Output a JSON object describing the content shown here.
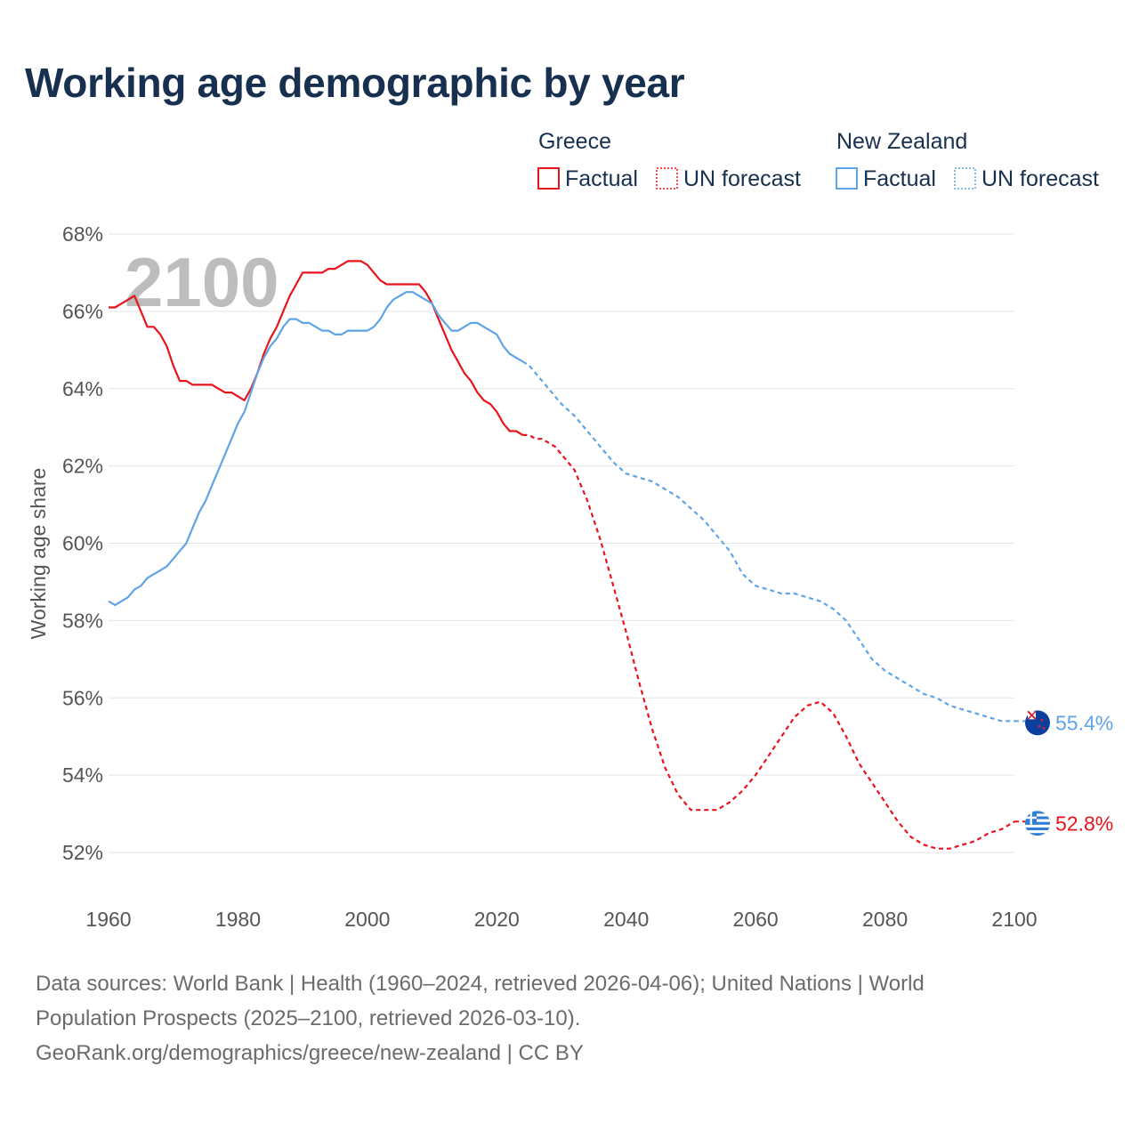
{
  "title": "Working age demographic by year",
  "legend": {
    "groups": [
      {
        "country": "Greece",
        "factual_label": "Factual",
        "forecast_label": "UN forecast",
        "color": "#e8141c"
      },
      {
        "country": "New Zealand",
        "factual_label": "Factual",
        "forecast_label": "UN forecast",
        "color": "#5fa4e6"
      }
    ]
  },
  "watermark_year": "2100",
  "colors": {
    "greece": "#e8141c",
    "new_zealand": "#5fa4e6",
    "grid": "#e5e5e5",
    "title": "#17304f"
  },
  "source": {
    "line1": "Data sources: World Bank | Health (1960–2024, retrieved 2026-04-06); United Nations | World",
    "line2": "Population Prospects (2025–2100, retrieved 2026-03-10).",
    "line3": "GeoRank.org/demographics/greece/new-zealand | CC BY"
  },
  "chart_data": {
    "type": "line",
    "title": "Working age demographic by year",
    "xlabel": "",
    "ylabel": "Working age share",
    "xlim": [
      1960,
      2100
    ],
    "ylim": [
      51,
      68
    ],
    "x_ticks": [
      1960,
      1980,
      2000,
      2020,
      2040,
      2060,
      2080,
      2100
    ],
    "x_tick_labels": [
      "1960",
      "1980",
      "2000",
      "2020",
      "2040",
      "2060",
      "2080",
      "2100"
    ],
    "y_ticks": [
      52,
      54,
      56,
      58,
      60,
      62,
      64,
      66,
      68
    ],
    "y_tick_labels": [
      "52%",
      "54%",
      "56%",
      "58%",
      "60%",
      "62%",
      "64%",
      "66%",
      "68%"
    ],
    "grid": true,
    "legend_position": "top-right",
    "forecast_start_year": 2024,
    "series": [
      {
        "name": "Greece",
        "end_label": "52.8%",
        "points": [
          [
            1960,
            66.1
          ],
          [
            1961,
            66.1
          ],
          [
            1962,
            66.2
          ],
          [
            1963,
            66.3
          ],
          [
            1964,
            66.4
          ],
          [
            1965,
            66.0
          ],
          [
            1966,
            65.6
          ],
          [
            1967,
            65.6
          ],
          [
            1968,
            65.4
          ],
          [
            1969,
            65.1
          ],
          [
            1970,
            64.6
          ],
          [
            1971,
            64.2
          ],
          [
            1972,
            64.2
          ],
          [
            1973,
            64.1
          ],
          [
            1974,
            64.1
          ],
          [
            1975,
            64.1
          ],
          [
            1976,
            64.1
          ],
          [
            1977,
            64.0
          ],
          [
            1978,
            63.9
          ],
          [
            1979,
            63.9
          ],
          [
            1980,
            63.8
          ],
          [
            1981,
            63.7
          ],
          [
            1982,
            64.0
          ],
          [
            1983,
            64.4
          ],
          [
            1984,
            64.9
          ],
          [
            1985,
            65.3
          ],
          [
            1986,
            65.6
          ],
          [
            1987,
            66.0
          ],
          [
            1988,
            66.4
          ],
          [
            1989,
            66.7
          ],
          [
            1990,
            67.0
          ],
          [
            1991,
            67.0
          ],
          [
            1992,
            67.0
          ],
          [
            1993,
            67.0
          ],
          [
            1994,
            67.1
          ],
          [
            1995,
            67.1
          ],
          [
            1996,
            67.2
          ],
          [
            1997,
            67.3
          ],
          [
            1998,
            67.3
          ],
          [
            1999,
            67.3
          ],
          [
            2000,
            67.2
          ],
          [
            2001,
            67.0
          ],
          [
            2002,
            66.8
          ],
          [
            2003,
            66.7
          ],
          [
            2004,
            66.7
          ],
          [
            2005,
            66.7
          ],
          [
            2006,
            66.7
          ],
          [
            2007,
            66.7
          ],
          [
            2008,
            66.7
          ],
          [
            2009,
            66.5
          ],
          [
            2010,
            66.2
          ],
          [
            2011,
            65.8
          ],
          [
            2012,
            65.4
          ],
          [
            2013,
            65.0
          ],
          [
            2014,
            64.7
          ],
          [
            2015,
            64.4
          ],
          [
            2016,
            64.2
          ],
          [
            2017,
            63.9
          ],
          [
            2018,
            63.7
          ],
          [
            2019,
            63.6
          ],
          [
            2020,
            63.4
          ],
          [
            2021,
            63.1
          ],
          [
            2022,
            62.9
          ],
          [
            2023,
            62.9
          ],
          [
            2024,
            62.8
          ],
          [
            2025,
            62.8
          ],
          [
            2026,
            62.7
          ],
          [
            2027,
            62.7
          ],
          [
            2028,
            62.6
          ],
          [
            2029,
            62.5
          ],
          [
            2030,
            62.3
          ],
          [
            2032,
            61.9
          ],
          [
            2034,
            61.1
          ],
          [
            2036,
            60.1
          ],
          [
            2038,
            58.9
          ],
          [
            2040,
            57.7
          ],
          [
            2042,
            56.4
          ],
          [
            2044,
            55.2
          ],
          [
            2046,
            54.2
          ],
          [
            2048,
            53.5
          ],
          [
            2050,
            53.1
          ],
          [
            2052,
            53.1
          ],
          [
            2054,
            53.1
          ],
          [
            2056,
            53.3
          ],
          [
            2058,
            53.6
          ],
          [
            2060,
            54.0
          ],
          [
            2062,
            54.5
          ],
          [
            2064,
            55.0
          ],
          [
            2066,
            55.5
          ],
          [
            2068,
            55.8
          ],
          [
            2070,
            55.9
          ],
          [
            2072,
            55.6
          ],
          [
            2074,
            55.0
          ],
          [
            2076,
            54.3
          ],
          [
            2078,
            53.8
          ],
          [
            2080,
            53.3
          ],
          [
            2082,
            52.8
          ],
          [
            2084,
            52.4
          ],
          [
            2086,
            52.2
          ],
          [
            2088,
            52.1
          ],
          [
            2090,
            52.1
          ],
          [
            2092,
            52.2
          ],
          [
            2094,
            52.3
          ],
          [
            2096,
            52.5
          ],
          [
            2098,
            52.6
          ],
          [
            2100,
            52.8
          ]
        ]
      },
      {
        "name": "New Zealand",
        "end_label": "55.4%",
        "points": [
          [
            1960,
            58.5
          ],
          [
            1961,
            58.4
          ],
          [
            1962,
            58.5
          ],
          [
            1963,
            58.6
          ],
          [
            1964,
            58.8
          ],
          [
            1965,
            58.9
          ],
          [
            1966,
            59.1
          ],
          [
            1967,
            59.2
          ],
          [
            1968,
            59.3
          ],
          [
            1969,
            59.4
          ],
          [
            1970,
            59.6
          ],
          [
            1971,
            59.8
          ],
          [
            1972,
            60.0
          ],
          [
            1973,
            60.4
          ],
          [
            1974,
            60.8
          ],
          [
            1975,
            61.1
          ],
          [
            1976,
            61.5
          ],
          [
            1977,
            61.9
          ],
          [
            1978,
            62.3
          ],
          [
            1979,
            62.7
          ],
          [
            1980,
            63.1
          ],
          [
            1981,
            63.4
          ],
          [
            1982,
            63.9
          ],
          [
            1983,
            64.4
          ],
          [
            1984,
            64.8
          ],
          [
            1985,
            65.1
          ],
          [
            1986,
            65.3
          ],
          [
            1987,
            65.6
          ],
          [
            1988,
            65.8
          ],
          [
            1989,
            65.8
          ],
          [
            1990,
            65.7
          ],
          [
            1991,
            65.7
          ],
          [
            1992,
            65.6
          ],
          [
            1993,
            65.5
          ],
          [
            1994,
            65.5
          ],
          [
            1995,
            65.4
          ],
          [
            1996,
            65.4
          ],
          [
            1997,
            65.5
          ],
          [
            1998,
            65.5
          ],
          [
            1999,
            65.5
          ],
          [
            2000,
            65.5
          ],
          [
            2001,
            65.6
          ],
          [
            2002,
            65.8
          ],
          [
            2003,
            66.1
          ],
          [
            2004,
            66.3
          ],
          [
            2005,
            66.4
          ],
          [
            2006,
            66.5
          ],
          [
            2007,
            66.5
          ],
          [
            2008,
            66.4
          ],
          [
            2009,
            66.3
          ],
          [
            2010,
            66.2
          ],
          [
            2011,
            65.9
          ],
          [
            2012,
            65.7
          ],
          [
            2013,
            65.5
          ],
          [
            2014,
            65.5
          ],
          [
            2015,
            65.6
          ],
          [
            2016,
            65.7
          ],
          [
            2017,
            65.7
          ],
          [
            2018,
            65.6
          ],
          [
            2019,
            65.5
          ],
          [
            2020,
            65.4
          ],
          [
            2021,
            65.1
          ],
          [
            2022,
            64.9
          ],
          [
            2023,
            64.8
          ],
          [
            2024,
            64.7
          ],
          [
            2025,
            64.6
          ],
          [
            2026,
            64.4
          ],
          [
            2027,
            64.2
          ],
          [
            2028,
            64.0
          ],
          [
            2029,
            63.8
          ],
          [
            2030,
            63.6
          ],
          [
            2032,
            63.3
          ],
          [
            2034,
            62.9
          ],
          [
            2036,
            62.5
          ],
          [
            2038,
            62.1
          ],
          [
            2040,
            61.8
          ],
          [
            2042,
            61.7
          ],
          [
            2044,
            61.6
          ],
          [
            2046,
            61.4
          ],
          [
            2048,
            61.2
          ],
          [
            2050,
            60.9
          ],
          [
            2052,
            60.6
          ],
          [
            2054,
            60.2
          ],
          [
            2056,
            59.8
          ],
          [
            2058,
            59.2
          ],
          [
            2060,
            58.9
          ],
          [
            2062,
            58.8
          ],
          [
            2064,
            58.7
          ],
          [
            2066,
            58.7
          ],
          [
            2068,
            58.6
          ],
          [
            2070,
            58.5
          ],
          [
            2072,
            58.3
          ],
          [
            2074,
            58.0
          ],
          [
            2076,
            57.5
          ],
          [
            2078,
            57.0
          ],
          [
            2080,
            56.7
          ],
          [
            2082,
            56.5
          ],
          [
            2084,
            56.3
          ],
          [
            2086,
            56.1
          ],
          [
            2088,
            56.0
          ],
          [
            2090,
            55.8
          ],
          [
            2092,
            55.7
          ],
          [
            2094,
            55.6
          ],
          [
            2096,
            55.5
          ],
          [
            2098,
            55.4
          ],
          [
            2100,
            55.4
          ]
        ]
      }
    ]
  }
}
